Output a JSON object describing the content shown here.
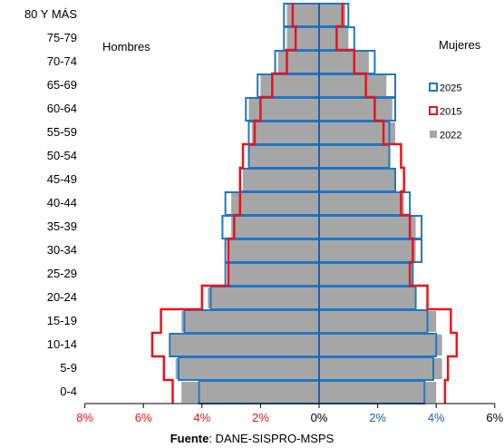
{
  "chart_data": {
    "type": "bar",
    "subtype": "population-pyramid",
    "categories": [
      "80 Y MÁS",
      "75-79",
      "70-74",
      "65-69",
      "60-64",
      "55-59",
      "50-54",
      "45-49",
      "40-44",
      "35-39",
      "30-34",
      "25-29",
      "20-24",
      "15-19",
      "10-14",
      "5-9",
      "0-4"
    ],
    "left_label": "Hombres",
    "right_label": "Mujeres",
    "x_ticks": [
      "8%",
      "6%",
      "4%",
      "2%",
      "0%",
      "2%",
      "4%",
      "6%"
    ],
    "x_tick_colors": [
      "#e8141c",
      "#e8141c",
      "#e8141c",
      "#e8141c",
      "#000000",
      "#1f5fa8",
      "#1f5fa8",
      "#000000"
    ],
    "xlim": [
      -8,
      6
    ],
    "series": [
      {
        "name": "2025",
        "style": "outline",
        "color": "#1f77c4",
        "hombres": [
          1.2,
          1.2,
          1.5,
          2.1,
          2.5,
          2.4,
          2.4,
          2.7,
          3.2,
          3.3,
          3.2,
          3.2,
          3.7,
          4.6,
          5.1,
          4.8,
          4.1
        ],
        "mujeres": [
          1.0,
          1.2,
          1.9,
          2.6,
          2.6,
          2.4,
          2.4,
          2.6,
          3.1,
          3.5,
          3.5,
          3.2,
          3.3,
          3.7,
          4.0,
          3.9,
          3.6
        ]
      },
      {
        "name": "2015",
        "style": "outline",
        "color": "#e8141c",
        "hombres": [
          0.9,
          0.8,
          1.1,
          1.6,
          2.0,
          2.2,
          2.6,
          2.7,
          2.7,
          2.9,
          3.1,
          3.1,
          4.0,
          5.4,
          5.7,
          5.3,
          5.0
        ],
        "mujeres": [
          0.8,
          0.6,
          1.2,
          1.6,
          1.9,
          2.2,
          2.8,
          2.9,
          2.8,
          3.1,
          3.2,
          3.1,
          3.7,
          4.5,
          4.7,
          4.4,
          4.3
        ]
      },
      {
        "name": "2022",
        "style": "fill",
        "color": "#a6a6a6",
        "hombres": [
          1.1,
          1.1,
          1.4,
          2.0,
          2.4,
          2.3,
          2.4,
          2.6,
          3.0,
          3.0,
          3.1,
          3.1,
          3.8,
          4.7,
          5.1,
          4.9,
          4.7
        ],
        "mujeres": [
          0.9,
          1.0,
          1.7,
          2.3,
          2.5,
          2.6,
          2.4,
          2.6,
          2.9,
          3.3,
          3.3,
          3.2,
          3.3,
          4.0,
          4.2,
          4.2,
          4.0
        ]
      }
    ],
    "legend_position": "right",
    "grid": false
  },
  "source_label": "Fuente",
  "source_text": ": DANE-SISPRO-MSPS"
}
